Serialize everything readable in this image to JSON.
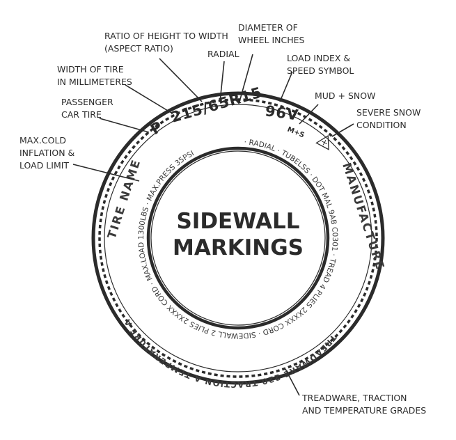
{
  "center": {
    "line1": "SIDEWALL",
    "line2": "MARKINGS"
  },
  "tire_code": {
    "p": "P",
    "size": "215/65R15",
    "load": "96V",
    "mud_snow_symbol": "M+S"
  },
  "sidewall": {
    "tire_name": "TIRE NAME",
    "manufacture": "MANUFACTURE",
    "treadware": "TREADWARE 220 TRACTION A TEMPERATURE A",
    "upper_small": "· RADIAL · TUBELSS · DOT MAL 9AB C0301 · TREAD 4 PLIES 2XXXX CORD · SIDEWALL 2 PLIES 2XXXX CORD · MAX.LOAD 1300LBS · MAX.PRESS 35PSI"
  },
  "callouts": {
    "aspect_ratio": [
      "RATIO OF HEIGHT TO WIDTH",
      "(ASPECT RATIO)"
    ],
    "diameter": [
      "DIAMETER OF",
      "WHEEL INCHES"
    ],
    "radial": [
      "RADIAL"
    ],
    "load_index": [
      "LOAD INDEX &",
      "SPEED SYMBOL"
    ],
    "width": [
      "WIDTH OF TIRE",
      "IN MILLIMETERES"
    ],
    "mud_snow": [
      "MUD + SNOW"
    ],
    "passenger": [
      "PASSENGER",
      "CAR TIRE"
    ],
    "severe_snow": [
      "SEVERE SNOW",
      "CONDITION"
    ],
    "max_cold": [
      "MAX.COLD",
      "INFLATION &",
      "LOAD LIMIT"
    ],
    "treadware_grades": [
      "TREADWARE, TRACTION",
      "AND TEMPERATURE GRADES"
    ]
  },
  "colors": {
    "ink": "#2b2b2b",
    "background": "#ffffff"
  }
}
